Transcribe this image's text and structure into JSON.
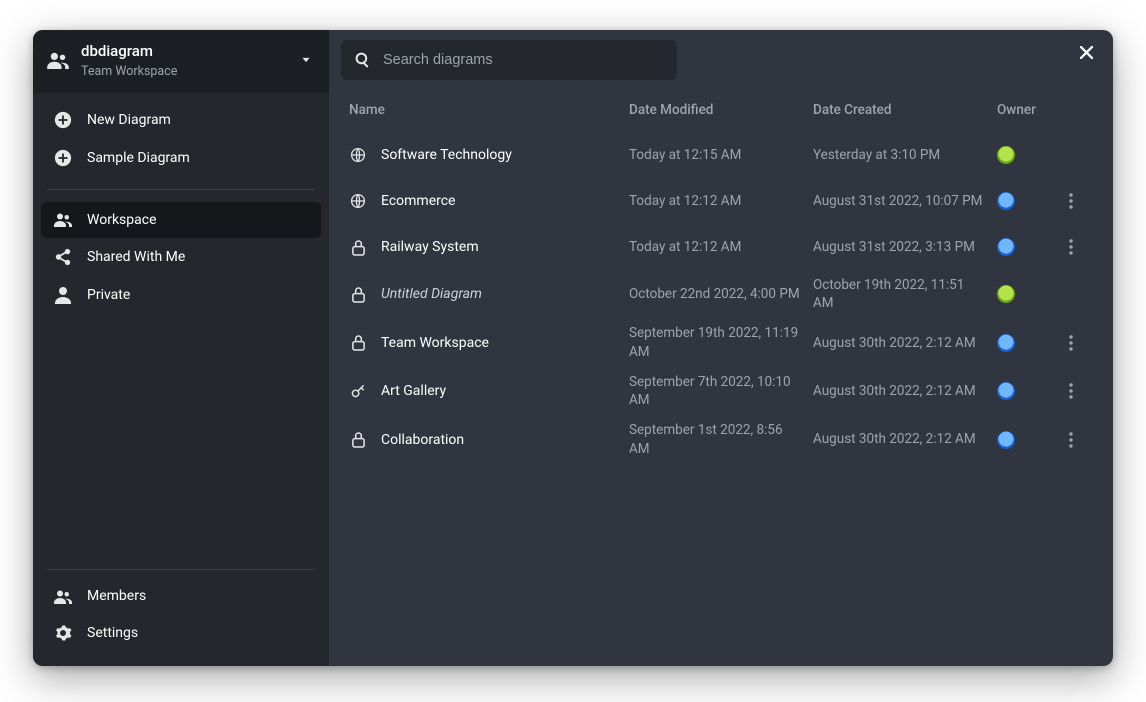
{
  "workspace": {
    "title": "dbdiagram",
    "subtitle": "Team Workspace"
  },
  "sidebar": {
    "actions": [
      {
        "label": "New Diagram"
      },
      {
        "label": "Sample Diagram"
      }
    ],
    "nav": [
      {
        "label": "Workspace",
        "active": true
      },
      {
        "label": "Shared With Me",
        "active": false
      },
      {
        "label": "Private",
        "active": false
      }
    ],
    "bottom": [
      {
        "label": "Members"
      },
      {
        "label": "Settings"
      }
    ]
  },
  "search": {
    "placeholder": "Search diagrams"
  },
  "table": {
    "columns": {
      "name": "Name",
      "modified": "Date Modified",
      "created": "Date Created",
      "owner": "Owner"
    },
    "rows": [
      {
        "icon": "globe",
        "name": "Software Technology",
        "italic": false,
        "modified": "Today at 12:15 AM",
        "created": "Yesterday at 3:10 PM",
        "owner": "green",
        "menu": false
      },
      {
        "icon": "globe",
        "name": "Ecommerce",
        "italic": false,
        "modified": "Today at 12:12 AM",
        "created": "August 31st 2022, 10:07 PM",
        "owner": "blue",
        "menu": true
      },
      {
        "icon": "lock",
        "name": "Railway System",
        "italic": false,
        "modified": "Today at 12:12 AM",
        "created": "August 31st 2022, 3:13 PM",
        "owner": "blue",
        "menu": true
      },
      {
        "icon": "lock",
        "name": "Untitled Diagram",
        "italic": true,
        "modified": "October 22nd 2022, 4:00 PM",
        "created": "October 19th 2022, 11:51 AM",
        "owner": "green",
        "menu": false
      },
      {
        "icon": "lock",
        "name": "Team Workspace",
        "italic": false,
        "modified": "September 19th 2022, 11:19 AM",
        "created": "August 30th 2022, 2:12 AM",
        "owner": "blue",
        "menu": true
      },
      {
        "icon": "key",
        "name": "Art Gallery",
        "italic": false,
        "modified": "September 7th 2022, 10:10 AM",
        "created": "August 30th 2022, 2:12 AM",
        "owner": "blue",
        "menu": true
      },
      {
        "icon": "lock",
        "name": "Collaboration",
        "italic": false,
        "modified": "September 1st 2022, 8:56 AM",
        "created": "August 30th 2022, 2:12 AM",
        "owner": "blue",
        "menu": true
      }
    ]
  },
  "colors": {
    "bgMain": "#30353f",
    "bgSidebar": "#24272d",
    "bgHeader": "#1c1f24",
    "textPrimary": "#ffffff",
    "textMuted": "#9ea3ad",
    "divider": "#3b3f47"
  }
}
